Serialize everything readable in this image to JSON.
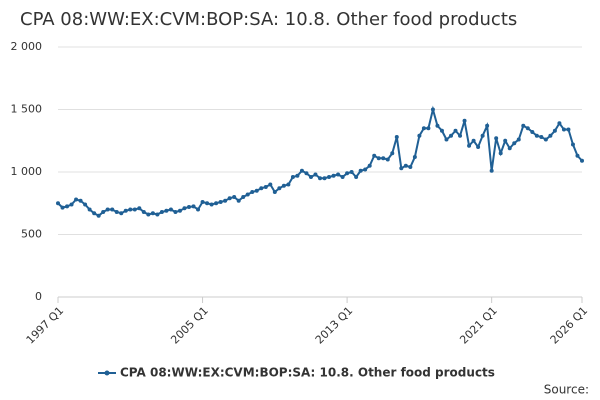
{
  "chart_data": {
    "type": "line",
    "title": "CPA 08:WW:EX:CVM:BOP:SA: 10.8. Other food products",
    "source": "Source:",
    "categories": [
      "1997 Q1",
      null,
      null,
      null,
      null,
      null,
      null,
      null,
      null,
      null,
      null,
      null,
      null,
      null,
      null,
      null,
      null,
      null,
      null,
      null,
      null,
      null,
      null,
      null,
      null,
      null,
      null,
      null,
      null,
      null,
      null,
      null,
      "2005 Q1",
      null,
      null,
      null,
      null,
      null,
      null,
      null,
      null,
      null,
      null,
      null,
      null,
      null,
      null,
      null,
      null,
      null,
      null,
      null,
      null,
      null,
      null,
      null,
      null,
      null,
      null,
      null,
      null,
      null,
      null,
      null,
      "2013 Q1",
      null,
      null,
      null,
      null,
      null,
      null,
      null,
      null,
      null,
      null,
      null,
      null,
      null,
      null,
      null,
      null,
      null,
      null,
      null,
      null,
      null,
      null,
      null,
      null,
      null,
      null,
      null,
      null,
      null,
      null,
      null,
      "2021 Q1",
      null,
      null,
      null,
      null,
      null,
      null,
      null,
      null,
      null,
      null,
      null,
      null,
      null,
      null,
      null,
      null,
      null,
      null,
      null,
      "2026 Q1"
    ],
    "series": [
      {
        "name": "CPA 08:WW:EX:CVM:BOP:SA: 10.8. Other food products",
        "color": "#206095",
        "values": [
          750,
          715,
          725,
          740,
          780,
          770,
          740,
          700,
          670,
          650,
          680,
          700,
          700,
          680,
          670,
          690,
          700,
          700,
          710,
          680,
          660,
          670,
          660,
          680,
          690,
          700,
          680,
          690,
          710,
          720,
          725,
          700,
          760,
          750,
          740,
          750,
          760,
          770,
          790,
          800,
          770,
          800,
          820,
          840,
          850,
          870,
          880,
          900,
          840,
          870,
          890,
          900,
          960,
          970,
          1010,
          990,
          960,
          980,
          950,
          950,
          960,
          970,
          980,
          960,
          990,
          1000,
          960,
          1010,
          1020,
          1050,
          1130,
          1110,
          1110,
          1100,
          1150,
          1280,
          1030,
          1050,
          1040,
          1120,
          1290,
          1350,
          1350,
          1500,
          1370,
          1330,
          1260,
          1290,
          1330,
          1290,
          1410,
          1210,
          1250,
          1200,
          1290,
          1370,
          1010,
          1270,
          1150,
          1250,
          1190,
          1230,
          1260,
          1370,
          1350,
          1320,
          1290,
          1280,
          1260,
          1290,
          1330,
          1390,
          1340,
          1340,
          1220,
          1130,
          1090
        ]
      }
    ],
    "ylim": [
      0,
      2000
    ],
    "yticks": [
      0,
      500,
      {
        "value": 1000,
        "label": "1 000"
      },
      {
        "value": 1500,
        "label": "1 500"
      },
      {
        "value": 2000,
        "label": "2 000"
      }
    ],
    "grid": true
  }
}
